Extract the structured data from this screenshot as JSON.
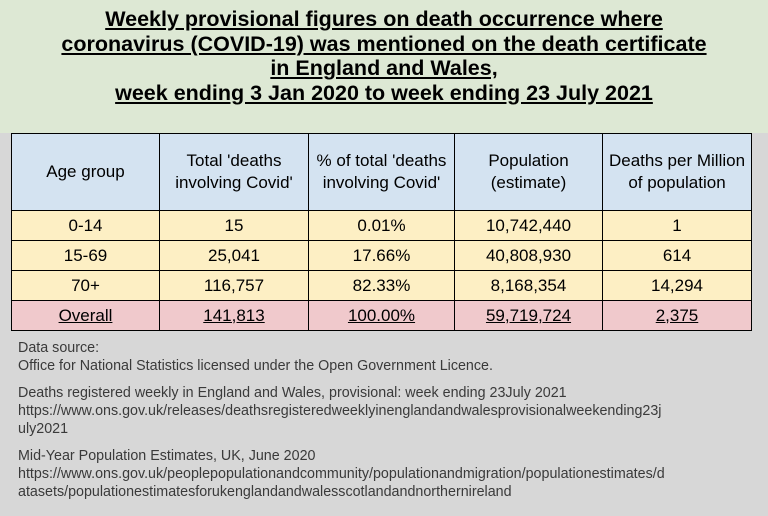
{
  "title": {
    "lines": [
      "Weekly provisional figures on death occurrence where",
      "coronavirus (COVID-19) was mentioned on the death certificate",
      "in England and Wales,",
      "week ending 3 Jan 2020 to week ending 23 July 2021"
    ]
  },
  "table": {
    "headers": [
      "Age group",
      "Total 'deaths involving Covid'",
      "% of total 'deaths involving Covid'",
      "Population (estimate)",
      "Deaths per Million of population"
    ],
    "rows": [
      [
        "0-14",
        "15",
        "0.01%",
        "10,742,440",
        "1"
      ],
      [
        "15-69",
        "25,041",
        "17.66%",
        "40,808,930",
        "614"
      ],
      [
        "70+",
        "116,757",
        "82.33%",
        "8,168,354",
        "14,294"
      ]
    ],
    "total": [
      "Overall",
      "141,813",
      "100.00%",
      "59,719,724",
      "2,375"
    ]
  },
  "sources": {
    "label": "Data source:",
    "licence": "Office for National Statistics licensed under the Open Government Licence.",
    "source1_title": "Deaths registered weekly in England and Wales, provisional: week ending 23July 2021",
    "source1_url": [
      "https://www.ons.gov.uk/releases/deathsregisteredweeklyinenglandandwalesprovisionalweekending23j",
      "uly2021"
    ],
    "source2_title": "Mid-Year Population Estimates, UK, June 2020",
    "source2_url": [
      "https://www.ons.gov.uk/peoplepopulationandcommunity/populationandmigration/populationestimates/d",
      "atasets/populationestimatesforukenglandandwalesscotlandandnorthernireland"
    ]
  },
  "colors": {
    "title_bg": "#dde8d4",
    "header_bg": "#d4e3f1",
    "row_bg": "#fdefc4",
    "total_bg": "#f0c9cc",
    "page_bg": "#d7d7d7"
  }
}
